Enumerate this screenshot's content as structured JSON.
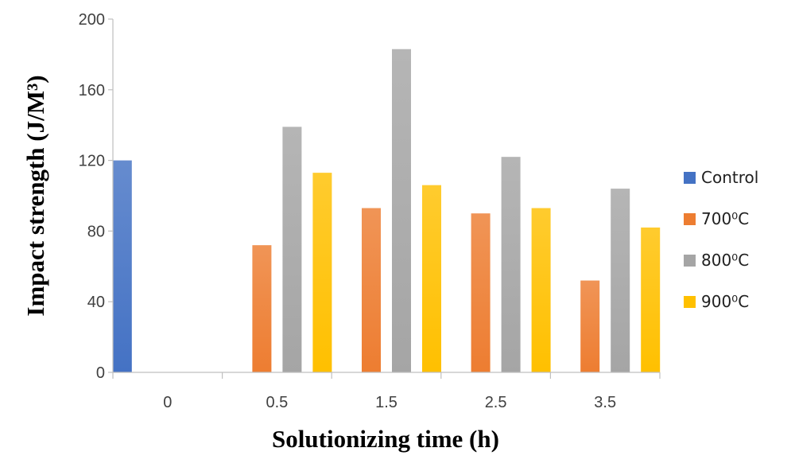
{
  "chart_data": {
    "type": "bar",
    "categories": [
      "0",
      "0.5",
      "1.5",
      "2.5",
      "3.5"
    ],
    "series": [
      {
        "name": "Control",
        "values": [
          120,
          0,
          0,
          0,
          0
        ],
        "color": "#4472c4"
      },
      {
        "name": "700⁰C",
        "values": [
          0,
          72,
          93,
          90,
          52
        ],
        "color": "#ed7d31"
      },
      {
        "name": "800⁰C",
        "values": [
          0,
          139,
          183,
          122,
          104
        ],
        "color": "#a5a5a5"
      },
      {
        "name": "900⁰C",
        "values": [
          0,
          113,
          106,
          93,
          82
        ],
        "color": "#ffc000"
      }
    ],
    "xlabel": "Solutionizing time (h)",
    "ylabel": "Impact strength (J/M³)",
    "ylim": [
      0,
      200
    ],
    "yticks": [
      "0",
      "40",
      "80",
      "120",
      "160",
      "200"
    ],
    "grid": false,
    "legend": "right"
  }
}
